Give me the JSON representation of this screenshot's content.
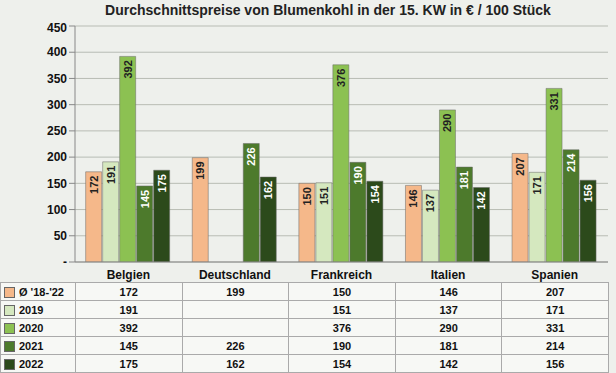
{
  "chart_data": {
    "type": "bar",
    "title": "Durchschnittspreise von Blumenkohl in der 15. KW in € / 100 Stück",
    "categories": [
      "Belgien",
      "Deutschland",
      "Frankreich",
      "Italien",
      "Spanien"
    ],
    "series": [
      {
        "name": "Ø '18-'22",
        "color": "#f5b88a",
        "values": [
          172,
          199,
          150,
          146,
          207
        ]
      },
      {
        "name": "2019",
        "color": "#d5e8bf",
        "values": [
          191,
          null,
          151,
          137,
          171
        ]
      },
      {
        "name": "2020",
        "color": "#8cc152",
        "values": [
          392,
          null,
          376,
          290,
          331
        ]
      },
      {
        "name": "2021",
        "color": "#4d7a2c",
        "values": [
          145,
          226,
          190,
          181,
          214
        ]
      },
      {
        "name": "2022",
        "color": "#2c4a1b",
        "values": [
          175,
          162,
          154,
          142,
          156
        ]
      }
    ],
    "ylim": [
      0,
      450
    ],
    "yticks": [
      {
        "value": 0,
        "label": "-"
      },
      50,
      100,
      150,
      200,
      250,
      300,
      350,
      400,
      450
    ],
    "grid": true,
    "data_labels": true
  }
}
